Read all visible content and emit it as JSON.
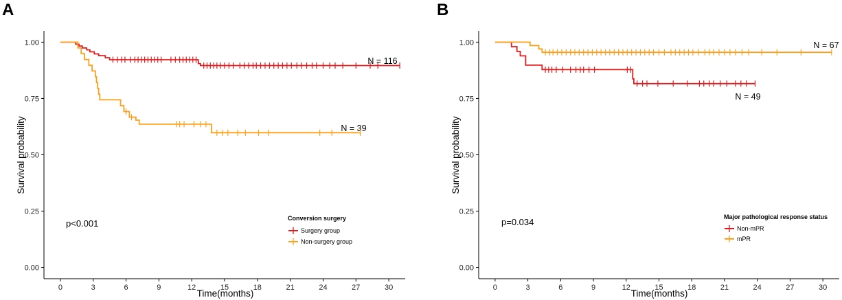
{
  "chart_data": [
    {
      "type": "line",
      "subtype": "kaplan-meier",
      "panel_label": "A",
      "xlabel": "Time(months)",
      "ylabel": "Survival probability",
      "xlim": [
        -1.5,
        31.5
      ],
      "ylim": [
        -0.05,
        1.05
      ],
      "xticks": [
        "0",
        "3",
        "6",
        "9",
        "12",
        "15",
        "18",
        "21",
        "24",
        "27",
        "30"
      ],
      "yticks": [
        "0.00",
        "0.25",
        "0.50",
        "0.75",
        "1.00"
      ],
      "grid": false,
      "pvalue": "p<0.001",
      "legend": {
        "title": "Conversion surgery",
        "position": "bottom-right"
      },
      "series": [
        {
          "name": "Surgery group",
          "color": "#e31a1c",
          "n_label": "N = 116",
          "steps": [
            [
              0,
              1.0
            ],
            [
              1.4,
              0.991
            ],
            [
              1.7,
              0.983
            ],
            [
              2.0,
              0.974
            ],
            [
              2.4,
              0.966
            ],
            [
              2.7,
              0.957
            ],
            [
              3.1,
              0.948
            ],
            [
              3.5,
              0.94
            ],
            [
              4.1,
              0.931
            ],
            [
              4.5,
              0.922
            ],
            [
              12.6,
              0.905
            ],
            [
              12.8,
              0.896
            ],
            [
              31.0,
              0.896
            ]
          ],
          "censor_times": [
            4.8,
            5.2,
            5.6,
            5.9,
            6.4,
            6.8,
            7.1,
            7.4,
            7.7,
            8.0,
            8.3,
            8.6,
            8.9,
            9.2,
            10.1,
            10.5,
            10.9,
            11.2,
            11.5,
            11.8,
            12.1,
            12.4,
            13.1,
            13.4,
            13.7,
            14.0,
            14.3,
            14.6,
            15.0,
            15.4,
            15.8,
            16.4,
            16.8,
            17.2,
            17.6,
            17.9,
            18.3,
            18.7,
            19.1,
            19.5,
            19.9,
            20.3,
            20.7,
            21.1,
            21.6,
            22.0,
            22.5,
            23.0,
            23.4,
            24.0,
            24.6,
            25.1,
            25.8,
            27.0,
            28.3,
            29.0,
            31.0
          ]
        },
        {
          "name": "Non-surgery group",
          "color": "#ff9f1a",
          "n_label": "N = 39",
          "steps": [
            [
              0,
              1.0
            ],
            [
              1.6,
              0.974
            ],
            [
              1.9,
              0.949
            ],
            [
              2.2,
              0.923
            ],
            [
              2.6,
              0.897
            ],
            [
              2.9,
              0.872
            ],
            [
              3.2,
              0.846
            ],
            [
              3.3,
              0.821
            ],
            [
              3.4,
              0.795
            ],
            [
              3.5,
              0.769
            ],
            [
              3.6,
              0.744
            ],
            [
              5.5,
              0.718
            ],
            [
              5.8,
              0.692
            ],
            [
              6.3,
              0.667
            ],
            [
              6.9,
              0.654
            ],
            [
              7.2,
              0.636
            ],
            [
              13.8,
              0.598
            ],
            [
              27.4,
              0.598
            ]
          ],
          "censor_times": [
            6.0,
            6.5,
            10.6,
            10.9,
            11.3,
            12.2,
            12.8,
            13.3,
            14.3,
            14.8,
            15.3,
            16.2,
            16.9,
            18.1,
            19.0,
            23.7,
            24.8,
            27.4
          ]
        }
      ]
    },
    {
      "type": "line",
      "subtype": "kaplan-meier",
      "panel_label": "B",
      "xlabel": "Time(months)",
      "ylabel": "Survival probability",
      "xlim": [
        -1.5,
        31.5
      ],
      "ylim": [
        -0.05,
        1.05
      ],
      "xticks": [
        "0",
        "3",
        "6",
        "9",
        "12",
        "15",
        "18",
        "21",
        "24",
        "27",
        "30"
      ],
      "yticks": [
        "0.00",
        "0.25",
        "0.50",
        "0.75",
        "1.00"
      ],
      "grid": false,
      "pvalue": "p=0.034",
      "legend": {
        "title": "Major pathological response status",
        "position": "bottom-right"
      },
      "series": [
        {
          "name": "Non-mPR",
          "color": "#e31a1c",
          "n_label": "N = 49",
          "steps": [
            [
              0,
              1.0
            ],
            [
              1.5,
              0.98
            ],
            [
              2.0,
              0.959
            ],
            [
              2.3,
              0.939
            ],
            [
              2.8,
              0.898
            ],
            [
              4.3,
              0.878
            ],
            [
              12.6,
              0.837
            ],
            [
              12.7,
              0.816
            ],
            [
              23.8,
              0.816
            ]
          ],
          "censor_times": [
            4.6,
            4.9,
            5.2,
            5.6,
            6.2,
            6.9,
            7.4,
            7.8,
            8.1,
            8.6,
            9.1,
            12.1,
            12.4,
            13.0,
            13.5,
            13.9,
            14.9,
            16.3,
            17.6,
            18.7,
            19.1,
            19.6,
            20.0,
            20.6,
            21.2,
            22.0,
            22.5,
            23.0,
            23.8
          ]
        },
        {
          "name": "mPR",
          "color": "#ff9f1a",
          "n_label": "N = 67",
          "steps": [
            [
              0,
              1.0
            ],
            [
              3.2,
              0.985
            ],
            [
              4.0,
              0.97
            ],
            [
              4.3,
              0.955
            ],
            [
              30.8,
              0.955
            ]
          ],
          "censor_times": [
            4.6,
            5.0,
            5.3,
            5.7,
            6.1,
            6.5,
            6.9,
            7.3,
            7.7,
            8.1,
            8.5,
            8.9,
            9.3,
            9.7,
            10.1,
            10.5,
            10.9,
            11.3,
            11.7,
            12.1,
            12.5,
            12.9,
            13.3,
            13.7,
            14.1,
            14.5,
            15.0,
            15.5,
            16.1,
            16.5,
            16.9,
            17.3,
            17.7,
            18.1,
            18.6,
            19.2,
            19.6,
            20.0,
            20.5,
            21.0,
            21.5,
            22.0,
            22.6,
            23.2,
            24.4,
            25.8,
            28.0,
            30.8
          ]
        }
      ]
    }
  ]
}
